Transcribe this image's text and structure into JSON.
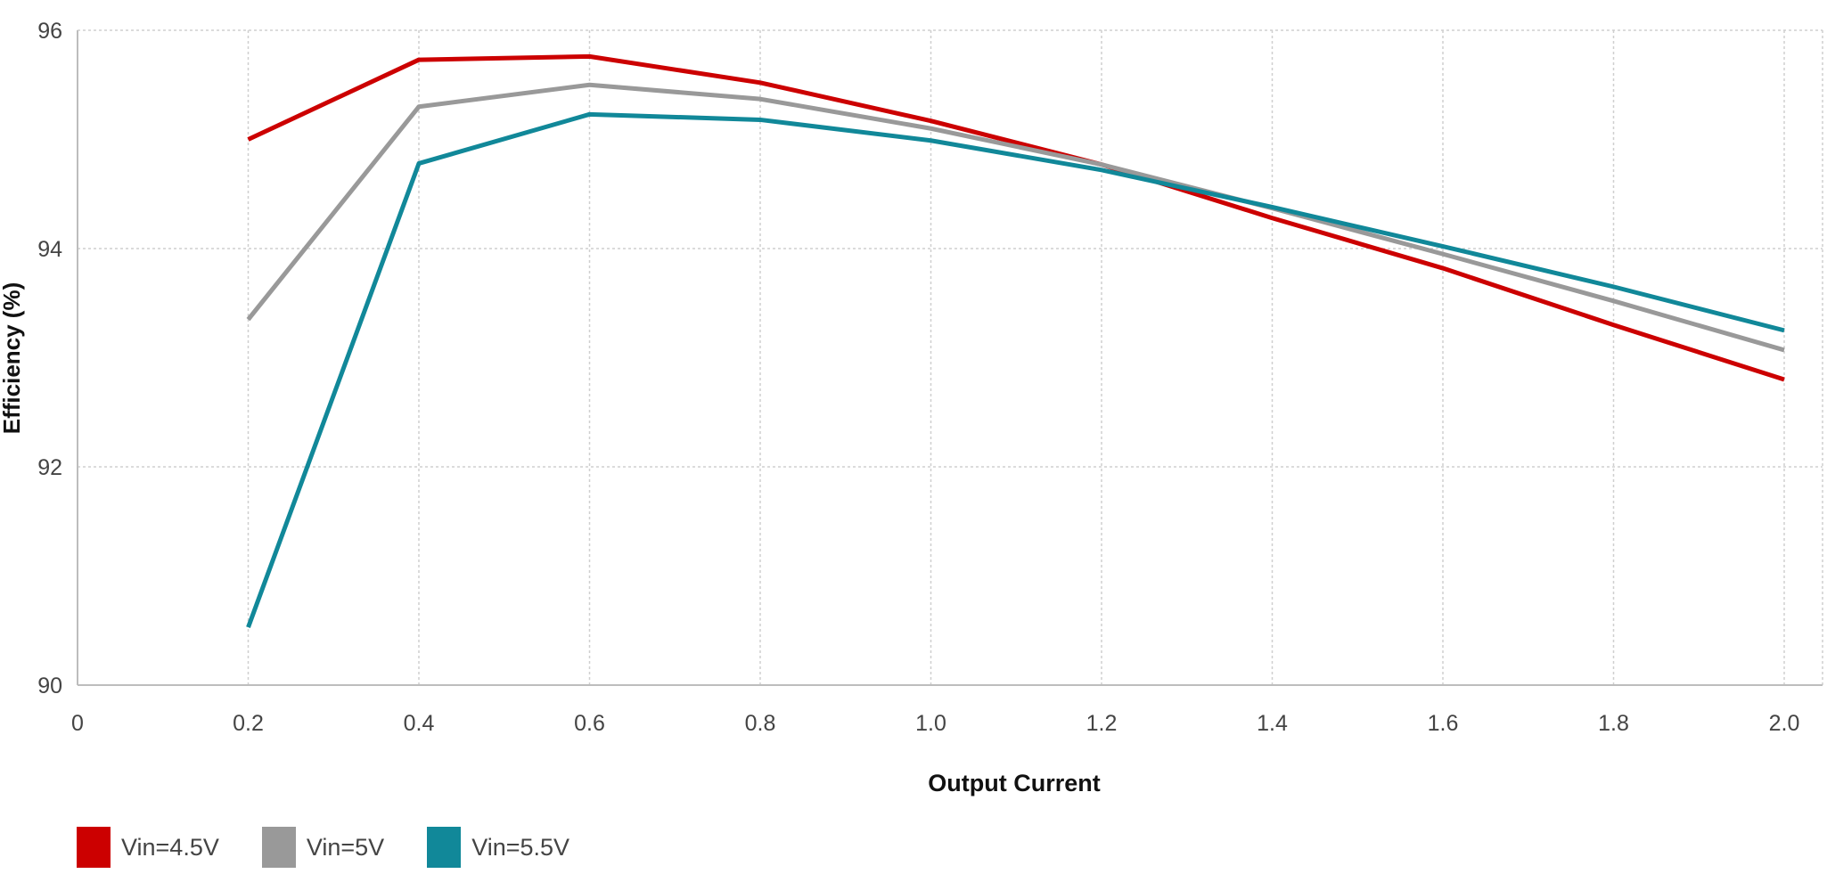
{
  "chart_data": {
    "type": "line",
    "xlabel": "Output Current",
    "ylabel": "Efficiency (%)",
    "xlim": [
      0,
      2.05
    ],
    "ylim": [
      90,
      96
    ],
    "x_ticks": [
      "0",
      "0.2",
      "0.4",
      "0.6",
      "0.8",
      "1.0",
      "1.2",
      "1.4",
      "1.6",
      "1.8",
      "2.0"
    ],
    "y_ticks": [
      "90",
      "92",
      "94",
      "96"
    ],
    "grid": true,
    "legend_position": "bottom-left",
    "x": [
      0.2,
      0.4,
      0.6,
      0.8,
      1.0,
      1.2,
      1.4,
      1.6,
      1.8,
      2.0
    ],
    "series": [
      {
        "name": "Vin=4.5V",
        "color": "#cc0000",
        "values": [
          95.0,
          95.73,
          95.76,
          95.52,
          95.17,
          94.77,
          94.28,
          93.82,
          93.3,
          92.8
        ]
      },
      {
        "name": "Vin=5V",
        "color": "#999999",
        "values": [
          93.35,
          95.3,
          95.5,
          95.37,
          95.1,
          94.77,
          94.37,
          93.95,
          93.52,
          93.07
        ]
      },
      {
        "name": "Vin=5.5V",
        "color": "#118899",
        "values": [
          90.53,
          94.78,
          95.23,
          95.18,
          94.99,
          94.72,
          94.38,
          94.02,
          93.65,
          93.25
        ]
      }
    ]
  }
}
